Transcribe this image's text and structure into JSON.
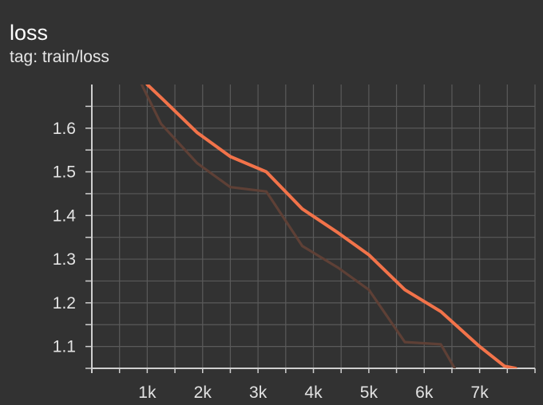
{
  "panel": {
    "title": "loss",
    "tag_label": "tag: train/loss"
  },
  "colors": {
    "background": "#323232",
    "grid": "#5a5a5a",
    "axis": "#cfcfcf",
    "smoothed_line": "#f2734a",
    "raw_line": "#5e4036"
  },
  "chart_data": {
    "type": "line",
    "title": "loss",
    "subtitle": "tag: train/loss",
    "xlabel": "",
    "ylabel": "",
    "xlim": [
      0,
      8000
    ],
    "ylim": [
      1.05,
      1.7
    ],
    "xticks": [
      1000,
      2000,
      3000,
      4000,
      5000,
      6000,
      7000
    ],
    "xtick_labels": [
      "1k",
      "2k",
      "3k",
      "4k",
      "5k",
      "6k",
      "7k"
    ],
    "yticks": [
      1.1,
      1.2,
      1.3,
      1.4,
      1.5,
      1.6
    ],
    "ytick_labels": [
      "1.1",
      "1.2",
      "1.3",
      "1.4",
      "1.5",
      "1.6"
    ],
    "grid": true,
    "legend": "none",
    "series": [
      {
        "role": "raw",
        "color": "#5e4036",
        "x": [
          900,
          1250,
          1900,
          2500,
          3150,
          3800,
          4450,
          5000,
          5650,
          6300,
          6550
        ],
        "y": [
          1.7,
          1.61,
          1.52,
          1.465,
          1.455,
          1.33,
          1.28,
          1.23,
          1.11,
          1.105,
          1.05
        ]
      },
      {
        "role": "smoothed",
        "color": "#f2734a",
        "x": [
          1000,
          1250,
          1900,
          2500,
          3150,
          3800,
          4450,
          5000,
          5650,
          6300,
          7000,
          7450,
          7650
        ],
        "y": [
          1.7,
          1.67,
          1.59,
          1.535,
          1.5,
          1.415,
          1.36,
          1.31,
          1.23,
          1.18,
          1.1,
          1.055,
          1.05
        ]
      }
    ]
  }
}
